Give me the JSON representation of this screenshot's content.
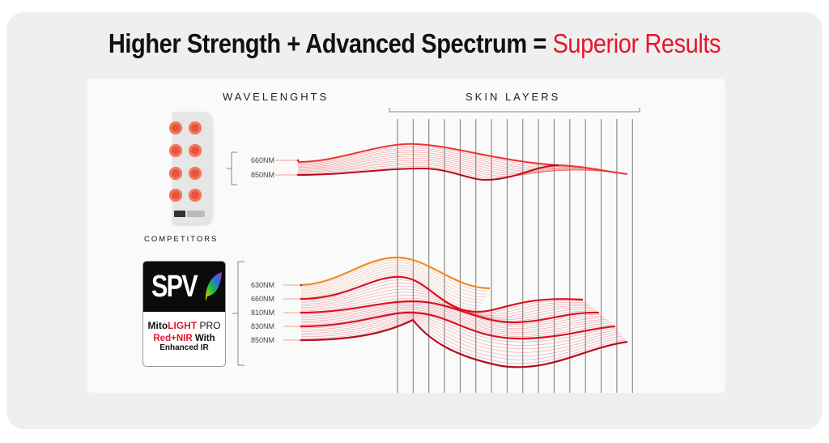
{
  "title": {
    "main": "Higher Strength + Advanced Spectrum = ",
    "accent": "Superior Results"
  },
  "headers": {
    "wavelengths": "WAVELENGHTS",
    "skin_layers": "SKIN LAYERS"
  },
  "competitors": {
    "label": "COMPETITORS",
    "wavelengths": [
      "660NM",
      "850NM"
    ]
  },
  "product": {
    "logo": "SPV",
    "name_a": "Mito",
    "name_b": "LIGHT",
    "name_c": " PRO",
    "line2_a": "Red+NIR",
    "line2_b": " With",
    "line3": "Enhanced IR",
    "wavelengths": [
      "630NM",
      "660NM",
      "810NM",
      "830NM",
      "850NM"
    ]
  },
  "colors": {
    "accent": "#e5172b",
    "orange": "#f08a24",
    "red": "#d8121f",
    "dark_red": "#b50d1c"
  }
}
